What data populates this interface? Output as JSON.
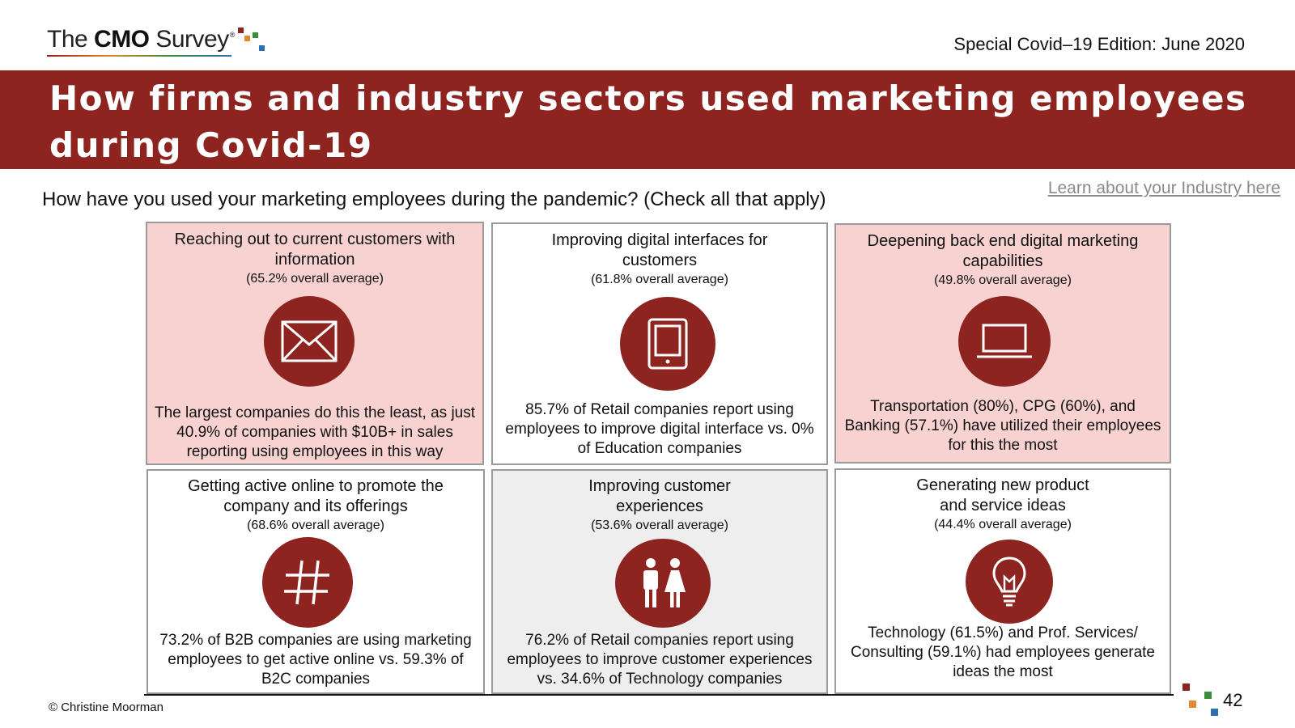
{
  "header": {
    "logo": {
      "pre": "The ",
      "bold": "CMO",
      "post": " Survey",
      "reg": "®"
    },
    "edition": "Special Covid–19 Edition: June 2020"
  },
  "banner": {
    "title": "How firms and industry sectors used marketing employees during Covid-19"
  },
  "question": "How have you used your marketing employees during the pandemic? (Check all that apply)",
  "industry_link": "Learn about your Industry here",
  "cards": [
    {
      "title": "Reaching out to current customers with information",
      "average": "(65.2% overall average)",
      "icon": "envelope-icon",
      "stat": "The largest companies do this the least, as just 40.9% of companies with $10B+ in sales reporting using employees in this way"
    },
    {
      "title": "Improving digital interfaces for customers",
      "average": "(61.8% overall average)",
      "icon": "tablet-icon",
      "stat": "85.7% of Retail companies report using employees to improve digital interface vs. 0% of Education companies"
    },
    {
      "title": "Deepening back end digital marketing capabilities",
      "average": "(49.8% overall average)",
      "icon": "laptop-icon",
      "stat": "Transportation (80%), CPG (60%), and Banking (57.1%) have utilized their employees for this the most"
    },
    {
      "title": "Getting active online to promote the company and its offerings",
      "average": "(68.6% overall average)",
      "icon": "hashtag-icon",
      "stat": "73.2% of B2B companies are using marketing employees to get active online vs. 59.3% of B2C companies"
    },
    {
      "title": "Improving customer experiences",
      "average": "(53.6% overall average)",
      "icon": "people-icon",
      "stat": "76.2% of Retail companies report using employees to improve customer experiences vs. 34.6% of Technology companies"
    },
    {
      "title": "Generating new product and service ideas",
      "average": "(44.4% overall average)",
      "icon": "lightbulb-icon",
      "stat": "Technology (61.5%) and Prof. Services/ Consulting (59.1%) had employees generate ideas the most"
    }
  ],
  "footer": {
    "copyright": "© Christine Moorman",
    "page_number": "42"
  },
  "colors": {
    "brand_red": "#8e2420",
    "pink": "#f7d2d1",
    "gray": "#eeeeee"
  }
}
